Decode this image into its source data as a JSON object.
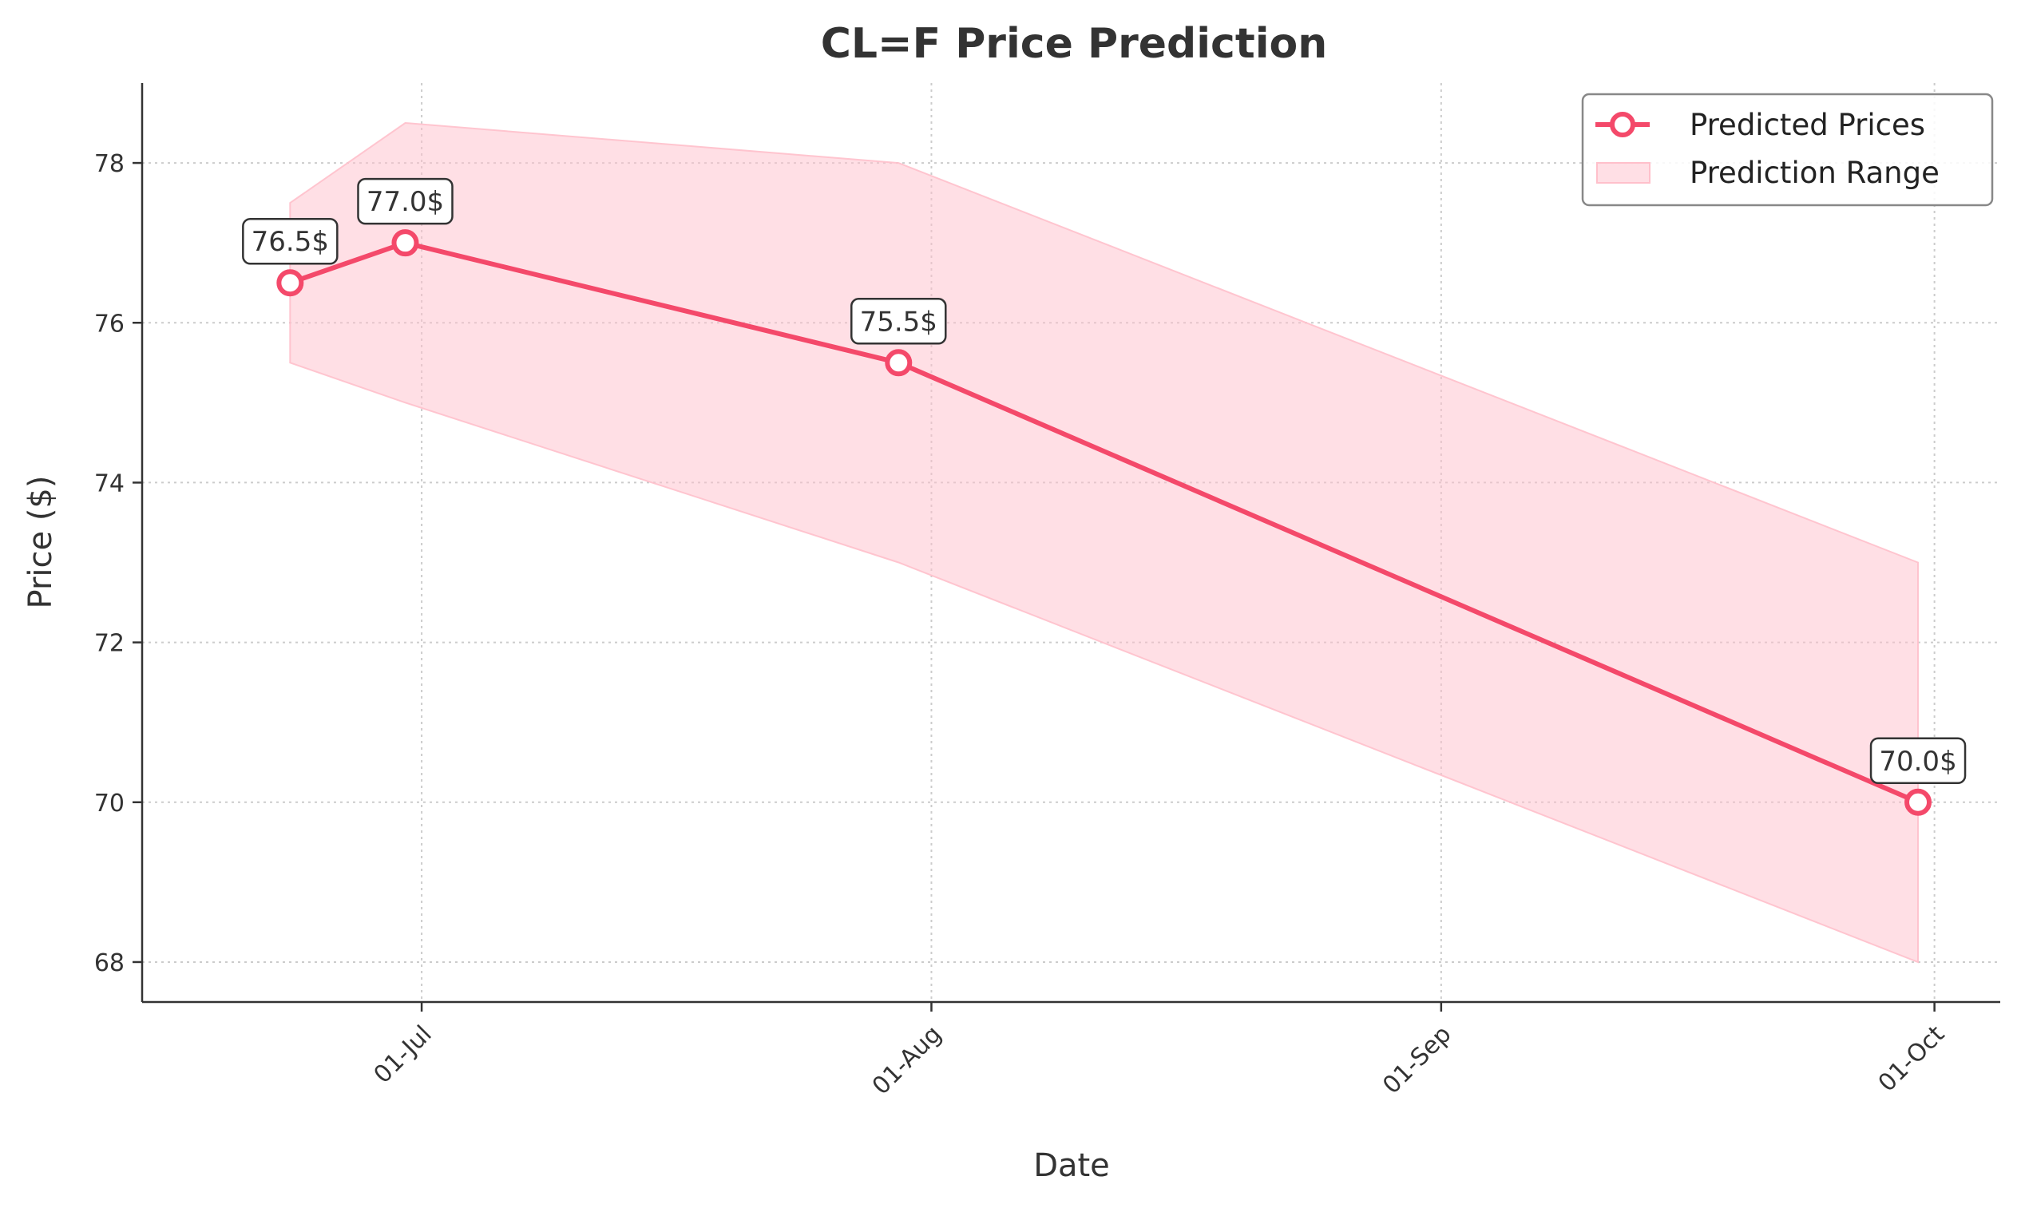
{
  "chart_data": {
    "type": "line",
    "title": "CL=F Price Prediction",
    "xlabel": "Date",
    "ylabel": "Price ($)",
    "x_tick_labels": [
      "01-Jul",
      "01-Aug",
      "01-Sep",
      "01-Oct"
    ],
    "x_tick_dates": [
      "2024-07-01",
      "2024-08-01",
      "2024-09-01",
      "2024-10-01"
    ],
    "x_range": [
      "2024-06-14",
      "2024-10-05"
    ],
    "ylim": [
      67.5,
      79.0
    ],
    "y_ticks": [
      68,
      70,
      72,
      74,
      76,
      78
    ],
    "grid": true,
    "legend_position": "top-right",
    "series": [
      {
        "name": "Predicted Prices",
        "x": [
          "2024-06-23",
          "2024-06-30",
          "2024-07-30",
          "2024-09-30"
        ],
        "values": [
          76.5,
          77.0,
          75.5,
          70.0
        ],
        "color": "#f4496a"
      }
    ],
    "range_band": {
      "name": "Prediction Range",
      "x": [
        "2024-06-23",
        "2024-06-30",
        "2024-07-30",
        "2024-09-30"
      ],
      "lower": [
        75.5,
        75.0,
        73.0,
        68.0
      ],
      "upper": [
        77.5,
        78.5,
        78.0,
        73.0
      ],
      "color": "#ffc0cb"
    },
    "data_labels": [
      "76.5$",
      "77.0$",
      "75.5$",
      "70.0$"
    ]
  }
}
